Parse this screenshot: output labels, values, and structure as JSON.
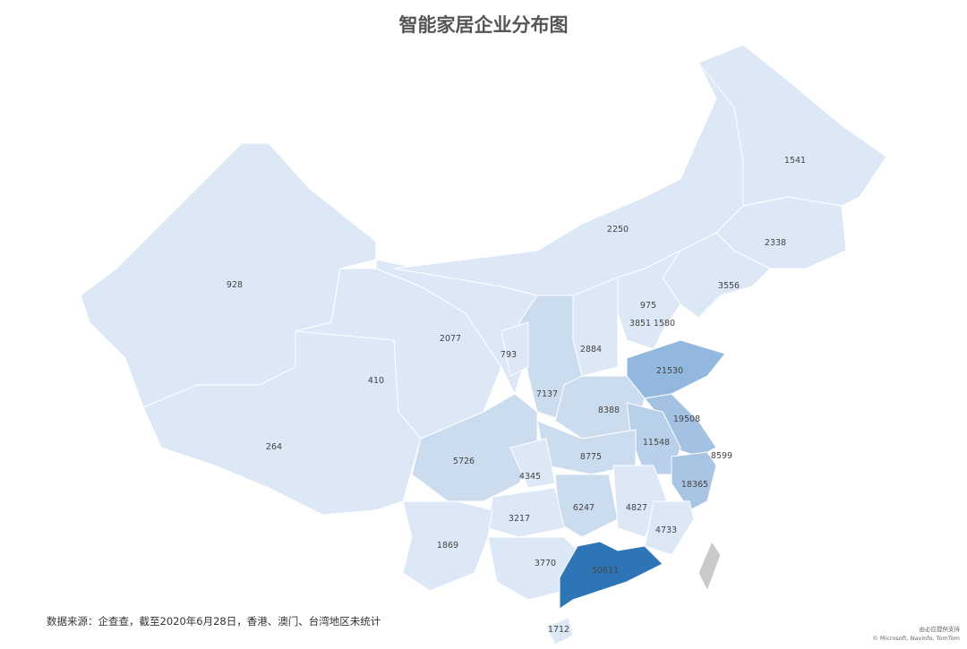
{
  "title": "智能家居企业分布图",
  "source_note": "数据来源：企查查，截至2020年6月28日，香港、澳门、台湾地区未统计",
  "credit": {
    "line1": "由必应提供支持",
    "line2": "© Microsoft, Navinfo, TomTom"
  },
  "colors": {
    "low": "#dce8f5",
    "mid": "#cbdcef",
    "high": "#93b8df",
    "max": "#2e75b6",
    "not_counted": "#c9c9c9",
    "border": "#ffffff"
  },
  "regions": [
    {
      "value": "928"
    },
    {
      "value": "264"
    },
    {
      "value": "410"
    },
    {
      "value": "2077"
    },
    {
      "value": "2250"
    },
    {
      "value": "1541"
    },
    {
      "value": "2338"
    },
    {
      "value": "3556"
    },
    {
      "value": "975"
    },
    {
      "value": "3851"
    },
    {
      "value": "1580"
    },
    {
      "value": "793"
    },
    {
      "value": "2884"
    },
    {
      "value": "7137"
    },
    {
      "value": "21530"
    },
    {
      "value": "8388"
    },
    {
      "value": "19508"
    },
    {
      "value": "11548"
    },
    {
      "value": "8599"
    },
    {
      "value": "5726"
    },
    {
      "value": "8775"
    },
    {
      "value": "4345"
    },
    {
      "value": "18365"
    },
    {
      "value": "6247"
    },
    {
      "value": "4827"
    },
    {
      "value": "3217"
    },
    {
      "value": "4733"
    },
    {
      "value": "1869"
    },
    {
      "value": "3770"
    },
    {
      "value": "50611"
    },
    {
      "value": "1712"
    }
  ]
}
